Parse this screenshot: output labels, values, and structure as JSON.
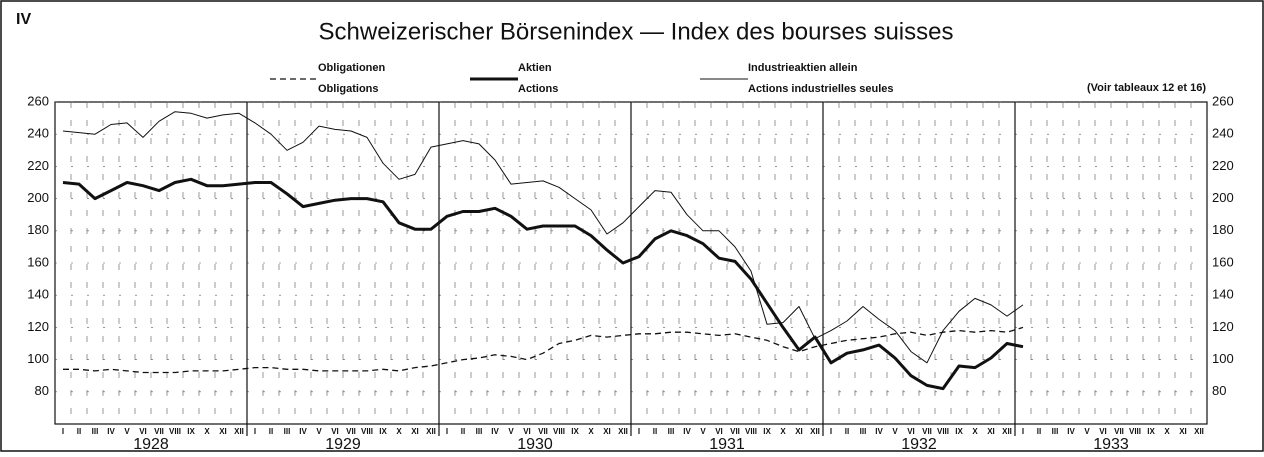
{
  "chart_data": {
    "type": "line",
    "panel": "IV",
    "title": "Schweizerischer Börsenindex — Index des bourses suisses",
    "note": "(Voir tableaux 12 et 16)",
    "categories": [
      "I",
      "II",
      "III",
      "IV",
      "V",
      "VI",
      "VII",
      "VIII",
      "IX",
      "X",
      "XI",
      "XII",
      "I",
      "II",
      "III",
      "IV",
      "V",
      "VI",
      "VII",
      "VIII",
      "IX",
      "X",
      "XI",
      "XII",
      "I",
      "II",
      "III",
      "IV",
      "V",
      "VI",
      "VII",
      "VIII",
      "IX",
      "X",
      "XI",
      "XII",
      "I",
      "II",
      "III",
      "IV",
      "V",
      "VI",
      "VII",
      "VIII",
      "IX",
      "X",
      "XI",
      "XII",
      "I",
      "II",
      "III",
      "IV",
      "V",
      "VI",
      "VII",
      "VIII",
      "IX",
      "X",
      "XI",
      "XII",
      "I",
      "II",
      "III",
      "IV",
      "V",
      "VI",
      "VII",
      "VIII",
      "IX",
      "X",
      "XI",
      "XII"
    ],
    "years": [
      "1928",
      "1929",
      "1930",
      "1931",
      "1932",
      "1933"
    ],
    "series": [
      {
        "name": "Obligationen",
        "name2": "Obligations",
        "color": "#111111",
        "dash": true,
        "width": 1.3,
        "values": [
          94,
          94,
          93,
          94,
          93,
          92,
          92,
          92,
          93,
          93,
          93,
          94,
          95,
          95,
          94,
          94,
          93,
          93,
          93,
          93,
          94,
          93,
          95,
          96,
          98,
          100,
          101,
          103,
          102,
          100,
          104,
          110,
          112,
          115,
          114,
          115,
          116,
          116,
          117,
          117,
          116,
          115,
          116,
          114,
          112,
          108,
          105,
          108,
          110,
          112,
          113,
          114,
          116,
          117,
          115,
          117,
          118,
          117,
          118,
          117,
          120,
          null,
          null,
          null,
          null,
          null,
          null,
          null,
          null,
          null,
          null,
          null
        ]
      },
      {
        "name": "Aktien",
        "name2": "Actions",
        "color": "#111111",
        "dash": false,
        "width": 3,
        "values": [
          210,
          209,
          200,
          205,
          210,
          208,
          205,
          210,
          212,
          208,
          208,
          209,
          210,
          210,
          203,
          195,
          197,
          199,
          200,
          200,
          198,
          185,
          181,
          181,
          189,
          192,
          192,
          194,
          189,
          181,
          183,
          183,
          183,
          177,
          168,
          160,
          164,
          175,
          180,
          177,
          172,
          163,
          161,
          150,
          135,
          120,
          106,
          114,
          98,
          104,
          106,
          109,
          101,
          90,
          84,
          82,
          96,
          95,
          101,
          110,
          108,
          null,
          null,
          null,
          null,
          null,
          null,
          null,
          null,
          null,
          null,
          null
        ]
      },
      {
        "name": "Industrieaktien allein",
        "name2": "Actions industrielles seules",
        "color": "#111111",
        "dash": false,
        "width": 1,
        "values": [
          242,
          241,
          240,
          246,
          247,
          238,
          248,
          254,
          253,
          250,
          252,
          253,
          247,
          240,
          230,
          235,
          245,
          243,
          242,
          238,
          222,
          212,
          215,
          232,
          234,
          236,
          234,
          224,
          209,
          210,
          211,
          207,
          200,
          193,
          178,
          185,
          195,
          205,
          204,
          190,
          180,
          180,
          170,
          155,
          122,
          123,
          133,
          113,
          118,
          124,
          133,
          125,
          118,
          105,
          98,
          118,
          130,
          138,
          134,
          127,
          134,
          null,
          null,
          null,
          null,
          null,
          null,
          null,
          null,
          null,
          null,
          null
        ]
      }
    ],
    "ylim": [
      60,
      260
    ],
    "yticks": [
      80,
      100,
      120,
      140,
      160,
      180,
      200,
      220,
      240,
      260
    ],
    "grid": true
  }
}
